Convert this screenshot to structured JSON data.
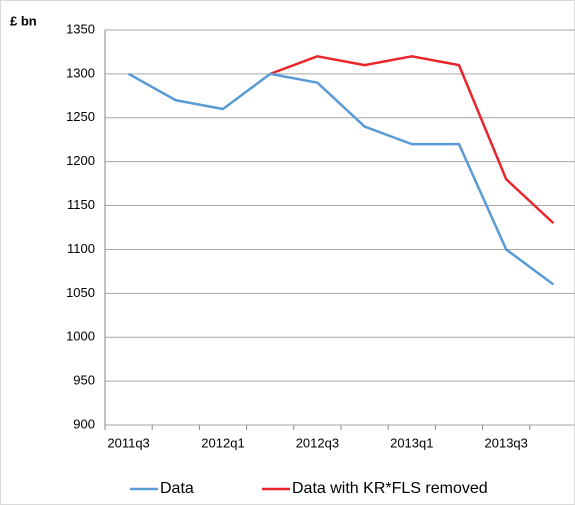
{
  "chart_data": {
    "type": "line",
    "y_axis_label": "£ bn",
    "categories": [
      "2011q3",
      null,
      "2012q1",
      null,
      "2012q3",
      null,
      "2013q1",
      null,
      "2013q3",
      null
    ],
    "series": [
      {
        "name": "Data",
        "color": "#5b9bd5",
        "values": [
          1300,
          1270,
          1260,
          1300,
          1290,
          1240,
          1220,
          1220,
          1100,
          1060
        ]
      },
      {
        "name": "Data with KR*FLS removed",
        "color": "#e8262b",
        "values": [
          null,
          null,
          null,
          1300,
          1320,
          1310,
          1320,
          1310,
          1180,
          1130
        ]
      }
    ],
    "ylim": [
      900,
      1350
    ],
    "yticks": [
      900,
      950,
      1000,
      1050,
      1100,
      1150,
      1200,
      1250,
      1300,
      1350
    ],
    "grid": true,
    "legend": "bottom"
  }
}
